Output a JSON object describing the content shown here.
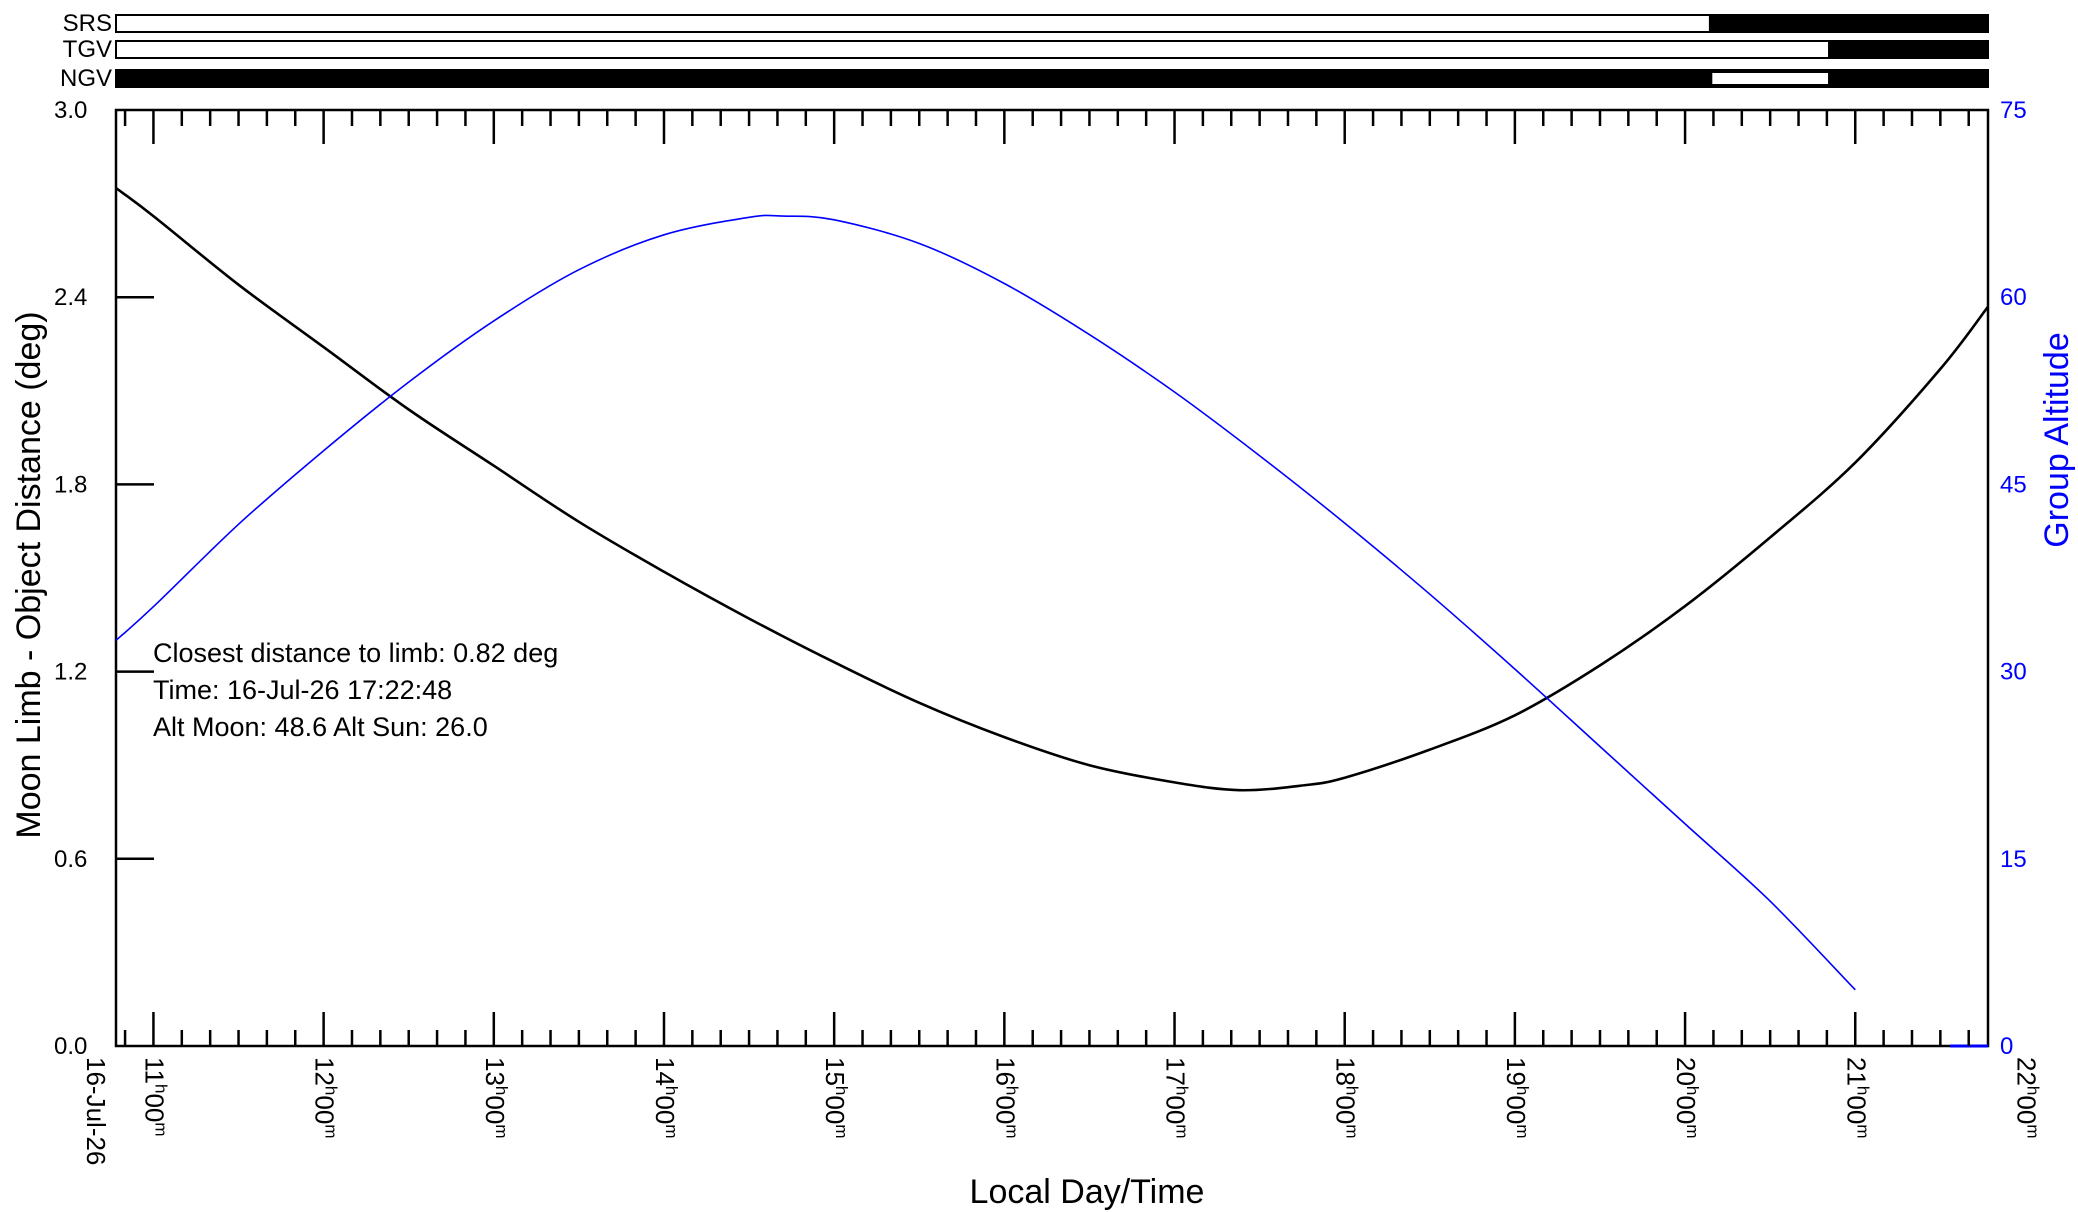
{
  "chart_data": {
    "type": "line",
    "xlabel": "Local Day/Time",
    "ylabel_left": "Moon Limb - Object Distance (deg)",
    "ylabel_right": "Group Altitude",
    "left_axis": {
      "min": 0.0,
      "max": 3.0,
      "ticks": [
        "0.0",
        "0.6",
        "1.2",
        "1.8",
        "2.4",
        "3.0"
      ]
    },
    "right_axis": {
      "min": 0,
      "max": 75,
      "ticks": [
        "0",
        "15",
        "30",
        "45",
        "60",
        "75"
      ]
    },
    "x_range_hours": [
      10.78,
      21.78
    ],
    "date_label": "16-Jul-26",
    "x_tick_labels": [
      {
        "hours": 11,
        "h": "11",
        "m": "00"
      },
      {
        "hours": 12,
        "h": "12",
        "m": "00"
      },
      {
        "hours": 13,
        "h": "13",
        "m": "00"
      },
      {
        "hours": 14,
        "h": "14",
        "m": "00"
      },
      {
        "hours": 15,
        "h": "15",
        "m": "00"
      },
      {
        "hours": 16,
        "h": "16",
        "m": "00"
      },
      {
        "hours": 17,
        "h": "17",
        "m": "00"
      },
      {
        "hours": 18,
        "h": "18",
        "m": "00"
      },
      {
        "hours": 19,
        "h": "19",
        "m": "00"
      },
      {
        "hours": 20,
        "h": "20",
        "m": "00"
      },
      {
        "hours": 21,
        "h": "21",
        "m": "00"
      },
      {
        "hours": 22,
        "h": "22",
        "m": "00"
      }
    ],
    "series": [
      {
        "axis": "left",
        "color": "#000000",
        "points": [
          [
            10.78,
            2.75
          ],
          [
            11.0,
            2.66
          ],
          [
            11.5,
            2.44
          ],
          [
            12.0,
            2.24
          ],
          [
            12.5,
            2.04
          ],
          [
            13.0,
            1.86
          ],
          [
            13.5,
            1.68
          ],
          [
            14.0,
            1.52
          ],
          [
            14.5,
            1.37
          ],
          [
            15.0,
            1.23
          ],
          [
            15.5,
            1.1
          ],
          [
            16.0,
            0.99
          ],
          [
            16.5,
            0.9
          ],
          [
            17.0,
            0.845
          ],
          [
            17.38,
            0.82
          ],
          [
            17.75,
            0.835
          ],
          [
            18.0,
            0.86
          ],
          [
            18.5,
            0.95
          ],
          [
            19.0,
            1.06
          ],
          [
            19.5,
            1.22
          ],
          [
            20.0,
            1.41
          ],
          [
            20.5,
            1.63
          ],
          [
            21.0,
            1.87
          ],
          [
            21.5,
            2.17
          ],
          [
            21.78,
            2.37
          ]
        ]
      },
      {
        "axis": "right",
        "color": "#0000ff",
        "points": [
          [
            10.78,
            32.5
          ],
          [
            11.0,
            35.2
          ],
          [
            11.5,
            41.8
          ],
          [
            12.0,
            47.7
          ],
          [
            12.5,
            53.2
          ],
          [
            13.0,
            58.1
          ],
          [
            13.5,
            62.2
          ],
          [
            14.0,
            65.0
          ],
          [
            14.5,
            66.4
          ],
          [
            14.7,
            66.5
          ],
          [
            15.0,
            66.2
          ],
          [
            15.5,
            64.3
          ],
          [
            16.0,
            61.1
          ],
          [
            16.5,
            57.0
          ],
          [
            17.0,
            52.4
          ],
          [
            17.5,
            47.3
          ],
          [
            18.0,
            41.9
          ],
          [
            18.5,
            36.2
          ],
          [
            19.0,
            30.2
          ],
          [
            19.5,
            24.0
          ],
          [
            20.0,
            17.8
          ],
          [
            20.5,
            11.6
          ],
          [
            21.0,
            4.5
          ]
        ]
      }
    ],
    "annotations": [
      "Closest distance to limb: 0.82 deg",
      "Time: 16-Jul-26  17:22:48",
      "Alt Moon:  48.6  Alt Sun:  26.0"
    ],
    "observability_bands": [
      {
        "label": "SRS",
        "black_from_hours": 20.14,
        "white_from_hours": null
      },
      {
        "label": "TGV",
        "black_from_hours": 20.84,
        "white_from_hours": null
      },
      {
        "label": "NGV",
        "black_from_hours": null,
        "white_from_hours": 20.16,
        "white_to_hours": 20.84
      }
    ]
  }
}
